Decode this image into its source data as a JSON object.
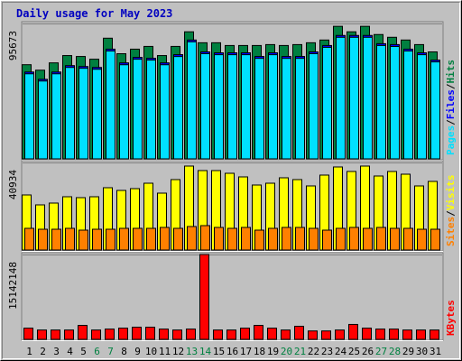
{
  "chart_data": [
    {
      "type": "bar",
      "title": "Daily usage for May 2023",
      "legend_separator": "/",
      "series": [
        {
          "name": "Hits",
          "color": "#008040",
          "values": [
            66538,
            62662,
            67830,
            73000,
            72352,
            70414,
            85272,
            74290,
            77520,
            79458,
            73000,
            79458,
            89794,
            82042,
            82042,
            80104,
            80104,
            80104,
            80750,
            80104,
            80750,
            82042,
            83980,
            93670,
            89794,
            93670,
            87856,
            85918,
            83980,
            80750,
            75582
          ]
        },
        {
          "name": "Files",
          "color": "#0000FF",
          "values": [
            61370,
            56202,
            61370,
            65892,
            65246,
            64600,
            77520,
            67830,
            71706,
            71060,
            67830,
            73644,
            83980,
            75582,
            74936,
            74936,
            74936,
            72352,
            74936,
            72352,
            72352,
            75582,
            80104,
            87210,
            87210,
            87210,
            81396,
            80750,
            77520,
            74936,
            69768
          ]
        },
        {
          "name": "Pages",
          "color": "#00E0FF",
          "values": [
            60100,
            55000,
            60100,
            64600,
            64000,
            63300,
            76200,
            66500,
            70400,
            69800,
            66500,
            72300,
            82700,
            74300,
            73600,
            73600,
            73600,
            71000,
            73600,
            71000,
            71000,
            74300,
            78800,
            85900,
            85900,
            85900,
            80100,
            79400,
            76200,
            73600,
            68500
          ]
        }
      ],
      "ylim": [
        0,
        95673
      ],
      "yticks": [
        95673
      ],
      "grid": true
    },
    {
      "type": "bar",
      "legend_separator": "/",
      "series": [
        {
          "name": "Visits",
          "color": "#FFFF00",
          "values": [
            25742,
            21100,
            21944,
            24898,
            24476,
            24898,
            29118,
            27852,
            28696,
            31228,
            26586,
            32916,
            39246,
            37136,
            37136,
            35870,
            34182,
            30384,
            31228,
            33760,
            32916,
            29962,
            35026,
            38824,
            36714,
            39246,
            34604,
            36714,
            35448,
            29962,
            32072
          ]
        },
        {
          "name": "Sites",
          "color": "#FF8000",
          "values": [
            10128,
            9706,
            9706,
            10128,
            9284,
            9706,
            9706,
            10128,
            10128,
            10128,
            10550,
            10128,
            10972,
            11394,
            10550,
            10128,
            10550,
            9284,
            10128,
            10550,
            10550,
            10128,
            9284,
            10128,
            10550,
            10128,
            10550,
            10128,
            10128,
            9706,
            9706
          ]
        }
      ],
      "ylim": [
        0,
        40934
      ],
      "yticks": [
        40934
      ],
      "grid": true
    },
    {
      "type": "bar",
      "categories": [
        "1",
        "2",
        "3",
        "4",
        "5",
        "6",
        "7",
        "8",
        "9",
        "10",
        "11",
        "12",
        "13",
        "14",
        "15",
        "16",
        "17",
        "18",
        "19",
        "20",
        "21",
        "22",
        "23",
        "24",
        "25",
        "26",
        "27",
        "28",
        "29",
        "30",
        "31"
      ],
      "category_colors": [
        "#000000",
        "#000000",
        "#000000",
        "#000000",
        "#000000",
        "#008040",
        "#008040",
        "#000000",
        "#000000",
        "#000000",
        "#000000",
        "#000000",
        "#008040",
        "#008040",
        "#000000",
        "#000000",
        "#000000",
        "#000000",
        "#000000",
        "#008040",
        "#008040",
        "#000000",
        "#000000",
        "#000000",
        "#000000",
        "#000000",
        "#008040",
        "#008040",
        "#000000",
        "#000000",
        "#000000"
      ],
      "series": [
        {
          "name": "KBytes",
          "color": "#FF0000",
          "values": [
            1996764,
            1663970,
            1663970,
            1663970,
            2495955,
            1663970,
            1830367,
            1996764,
            2163161,
            2163161,
            1830367,
            1663970,
            1830367,
            15142148,
            1663970,
            1663970,
            1996764,
            2495955,
            1996764,
            1663970,
            2329558,
            1497573,
            1497573,
            1663970,
            2662352,
            1996764,
            1830367,
            1830367,
            1663970,
            1663970,
            1663970
          ]
        }
      ],
      "ylim": [
        0,
        15142148
      ],
      "yticks": [
        15142148
      ],
      "grid": true
    }
  ]
}
